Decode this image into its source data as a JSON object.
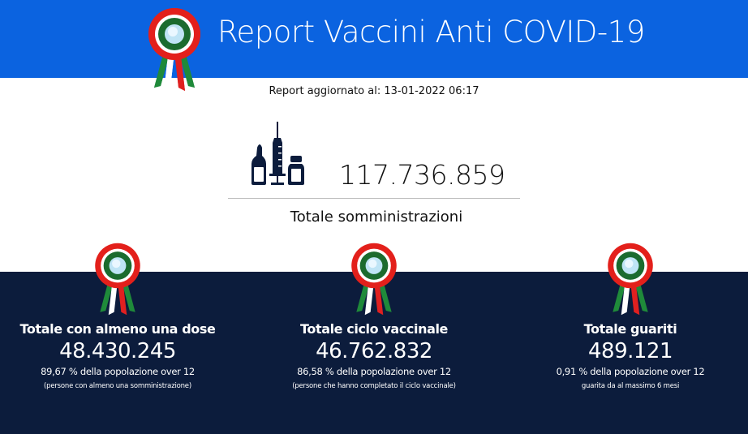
{
  "header": {
    "title": "Report Vaccini Anti COVID-19",
    "icon": "rosette-icon",
    "color": "#0b63e0"
  },
  "updated": "Report aggiornato al: 13-01-2022 06:17",
  "summary": {
    "icon": "vaccine-syringe-icon",
    "value": "117.736.859",
    "label": "Totale somministrazioni"
  },
  "stats": [
    {
      "title": "Totale con almeno una dose",
      "value": "48.430.245",
      "percent": "89,67 % della popolazione over 12",
      "note": "(persone con almeno una somministrazione)"
    },
    {
      "title": "Totale ciclo vaccinale",
      "value": "46.762.832",
      "percent": "86,58 % della popolazione over 12",
      "note": "(persone che hanno completato il ciclo vaccinale)"
    },
    {
      "title": "Totale guariti",
      "value": "489.121",
      "percent": "0,91 % della popolazione over 12",
      "note": "guarita da al massimo 6 mesi"
    }
  ],
  "colors": {
    "bottom": "#0c1c3c",
    "icon": "#0c1c3c"
  }
}
